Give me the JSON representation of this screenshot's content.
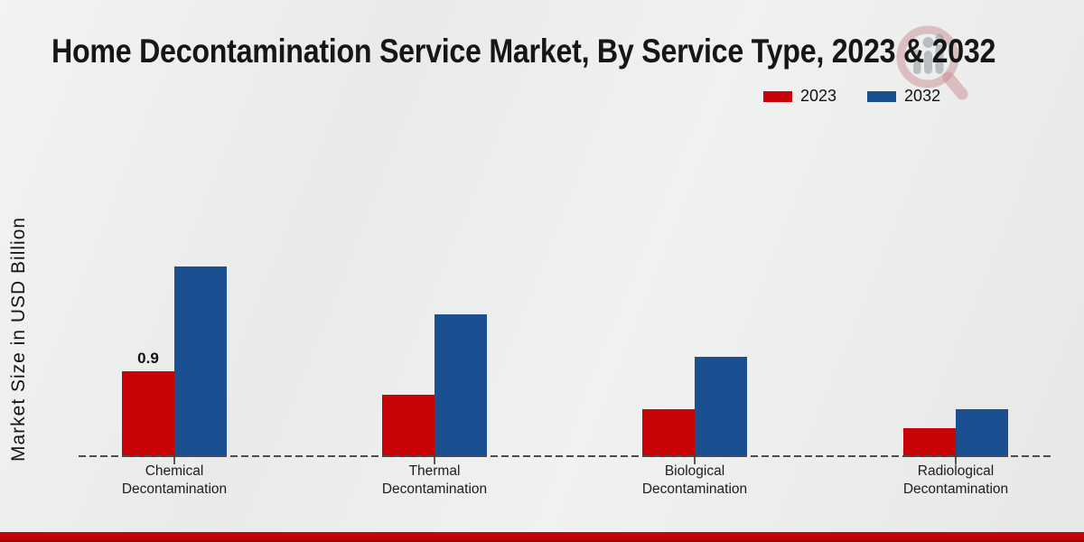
{
  "title": "Home Decontamination Service Market, By Service Type, 2023 & 2032",
  "legend": {
    "items": [
      {
        "label": "2023",
        "color": "#c80408"
      },
      {
        "label": "2032",
        "color": "#1a4f91"
      }
    ]
  },
  "watermark": {
    "name": "market-research-future-logo"
  },
  "footer": {
    "accent_color": "#c00303"
  },
  "chart_data": {
    "type": "bar",
    "title": "Home Decontamination Service Market, By Service Type, 2023 & 2032",
    "ylabel": "Market Size in USD Billion",
    "xlabel": "",
    "categories": [
      "Chemical Decontamination",
      "Thermal Decontamination",
      "Biological Decontamination",
      "Radiological Decontamination"
    ],
    "series": [
      {
        "name": "2023",
        "color": "#c80408",
        "values": [
          0.9,
          0.65,
          0.5,
          0.3
        ]
      },
      {
        "name": "2032",
        "color": "#1a4f91",
        "values": [
          2.0,
          1.5,
          1.05,
          0.5
        ]
      }
    ],
    "bar_labels": [
      {
        "series": "2023",
        "category_index": 0,
        "text": "0.9"
      }
    ],
    "ylim": [
      0,
      2.2
    ],
    "grid": false,
    "legend_position": "top-right",
    "baseline_style": "dashed"
  }
}
